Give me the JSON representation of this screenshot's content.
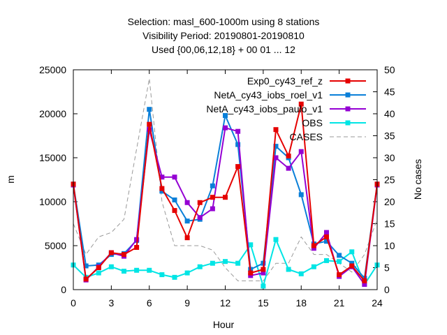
{
  "chart_data": {
    "type": "line",
    "title": [
      "Selection: masl_600-1000m using     8 stations",
      "Visibility   Period: 20190801-20190810",
      "Used {00,06,12,18} + 00 01 ... 12"
    ],
    "xlabel": "Hour",
    "ylabel": "m",
    "y2label": "No cases",
    "xlim": [
      0,
      24
    ],
    "ylim": [
      0,
      25000
    ],
    "y2lim": [
      0,
      50
    ],
    "xticks": [
      "0",
      "3",
      "6",
      "9",
      "12",
      "15",
      "18",
      "21",
      "24"
    ],
    "yticks": [
      "0",
      "5000",
      "10000",
      "15000",
      "20000",
      "25000"
    ],
    "y2ticks": [
      "0",
      "5",
      "10",
      "15",
      "20",
      "25",
      "30",
      "35",
      "40",
      "45",
      "50"
    ],
    "grid": false,
    "legend_position": "top-right",
    "x": [
      0,
      1,
      2,
      3,
      4,
      5,
      6,
      7,
      8,
      9,
      10,
      11,
      12,
      13,
      14,
      15,
      16,
      17,
      18,
      19,
      20,
      21,
      22,
      23,
      24
    ],
    "series": [
      {
        "name": "Exp0_cy43_ref_z",
        "color": "#e50000",
        "marker": "square",
        "values": [
          12000,
          1200,
          2500,
          4200,
          4000,
          4800,
          18800,
          11500,
          9000,
          5900,
          9900,
          10500,
          10500,
          14000,
          1900,
          2300,
          18200,
          15200,
          21100,
          5000,
          6000,
          1700,
          2700,
          1000,
          12000
        ]
      },
      {
        "name": "NetA_cy43_iobs_roel_v1",
        "color": "#0a7fd8",
        "marker": "square",
        "values": [
          12000,
          2700,
          2800,
          4000,
          4100,
          5600,
          20500,
          11200,
          10200,
          7800,
          8000,
          11800,
          19800,
          16500,
          2300,
          3000,
          16300,
          15000,
          10800,
          5200,
          5500,
          3900,
          3000,
          1300,
          12000
        ]
      },
      {
        "name": "NetA_cy43_iobs_paulo_v1",
        "color": "#9400d3",
        "marker": "square",
        "values": [
          11900,
          1100,
          2600,
          4200,
          3800,
          5700,
          18200,
          12800,
          12800,
          9900,
          8200,
          9200,
          18400,
          18000,
          1600,
          1900,
          15000,
          13800,
          15700,
          4700,
          6500,
          1500,
          2600,
          600,
          11900
        ]
      },
      {
        "name": "OBS",
        "color": "#00e5e5",
        "marker": "square",
        "values": [
          2800,
          1400,
          1900,
          2600,
          2100,
          2200,
          2200,
          1700,
          1400,
          1900,
          2600,
          3000,
          3200,
          3000,
          5100,
          400,
          5700,
          2300,
          1800,
          2600,
          3300,
          3200,
          4300,
          600,
          2800
        ]
      },
      {
        "name": "CASES",
        "color": "#999999",
        "marker": "none",
        "axis": "y2",
        "dash": true,
        "values": [
          15,
          8,
          12,
          13,
          16,
          32,
          48,
          20,
          10,
          10,
          10,
          9,
          5,
          2,
          2,
          2,
          6,
          6,
          12,
          8,
          8,
          6,
          4,
          8,
          16
        ]
      }
    ]
  }
}
